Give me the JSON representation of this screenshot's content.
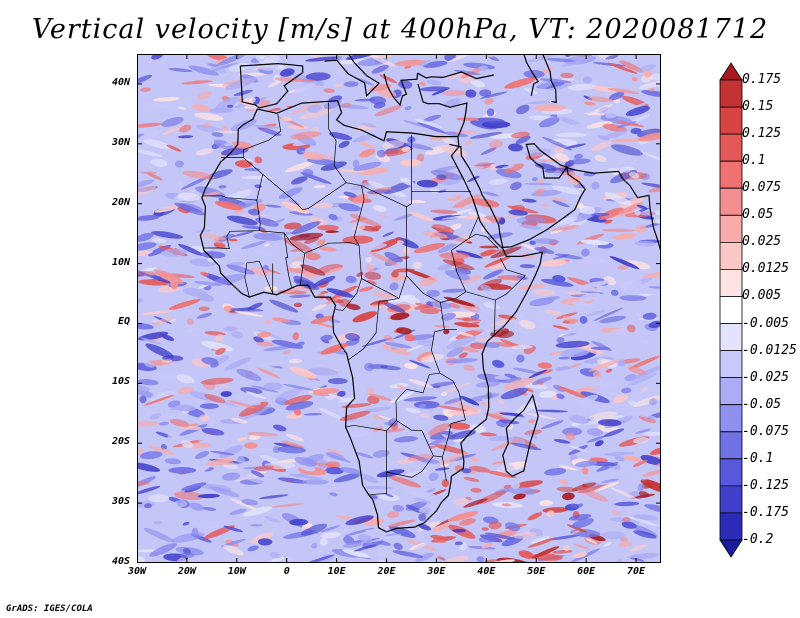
{
  "title": "Vertical velocity [m/s] at 400hPa, VT: 2020081712",
  "credit": "GrADS: IGES/COLA",
  "map": {
    "lon_range": [
      -30,
      75
    ],
    "lat_range": [
      -40,
      45
    ],
    "lat_labels": [
      {
        "value": 40,
        "text": "40N"
      },
      {
        "value": 30,
        "text": "30N"
      },
      {
        "value": 20,
        "text": "20N"
      },
      {
        "value": 10,
        "text": "10N"
      },
      {
        "value": 0,
        "text": "EQ"
      },
      {
        "value": -10,
        "text": "10S"
      },
      {
        "value": -20,
        "text": "20S"
      },
      {
        "value": -30,
        "text": "30S"
      },
      {
        "value": -40,
        "text": "40S"
      }
    ],
    "lon_labels": [
      {
        "value": -30,
        "text": "30W"
      },
      {
        "value": -20,
        "text": "20W"
      },
      {
        "value": -10,
        "text": "10W"
      },
      {
        "value": 0,
        "text": "0"
      },
      {
        "value": 10,
        "text": "10E"
      },
      {
        "value": 20,
        "text": "20E"
      },
      {
        "value": 30,
        "text": "30E"
      },
      {
        "value": 40,
        "text": "40E"
      },
      {
        "value": 50,
        "text": "50E"
      },
      {
        "value": 60,
        "text": "60E"
      },
      {
        "value": 70,
        "text": "70E"
      }
    ],
    "colors": {
      "land_outline": "#000000",
      "background": "#ffffff"
    }
  },
  "colorbar": {
    "labels": [
      "0.175",
      "0.15",
      "0.125",
      "0.1",
      "0.075",
      "0.05",
      "0.025",
      "0.0125",
      "0.005",
      "-0.005",
      "-0.0125",
      "-0.025",
      "-0.05",
      "-0.075",
      "-0.1",
      "-0.125",
      "-0.175",
      "-0.2"
    ],
    "colors": [
      "#a61a1f",
      "#c43333",
      "#d84444",
      "#e45858",
      "#ef7171",
      "#f48f8f",
      "#f8abab",
      "#fbc8c8",
      "#fde3e3",
      "#ffffff",
      "#e3e3fd",
      "#c8c8fa",
      "#abacf5",
      "#8f90ef",
      "#7172e6",
      "#5858dc",
      "#4040cc",
      "#2b2bb8",
      "#1c1ca0"
    ]
  }
}
